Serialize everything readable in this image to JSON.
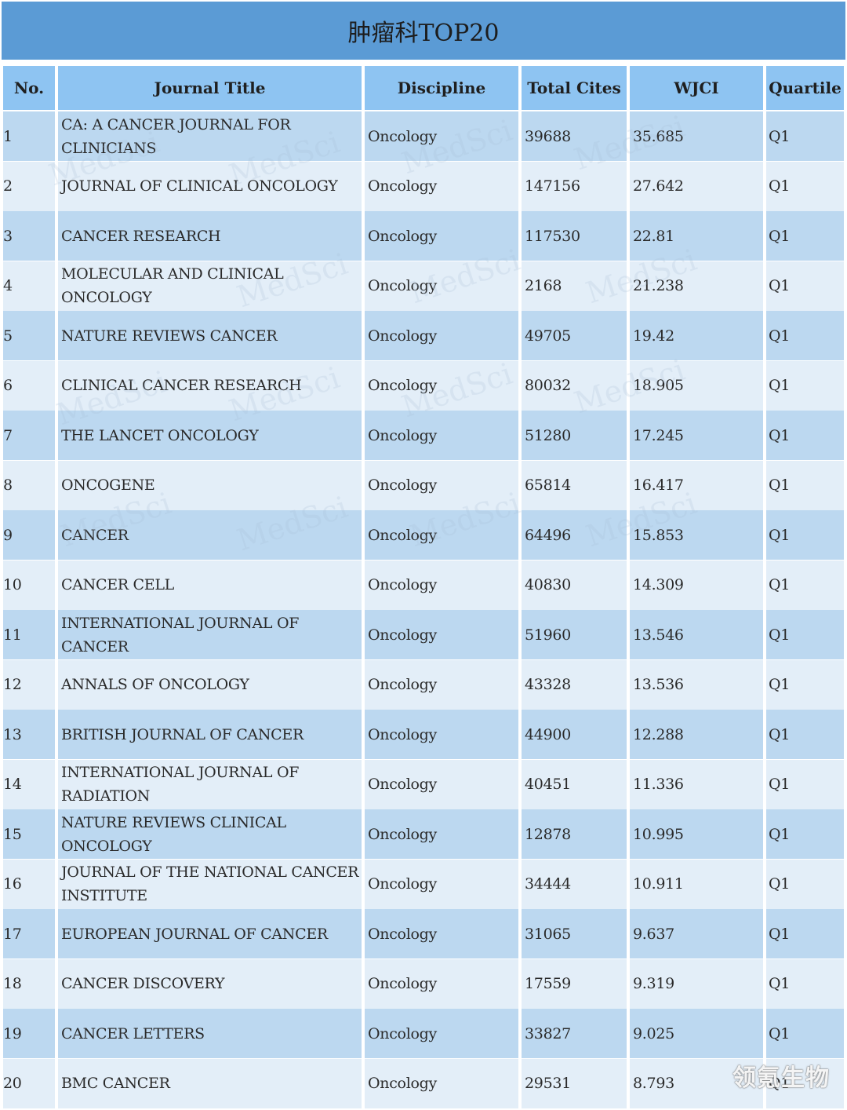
{
  "title": "肿瘤科TOP20",
  "columns": [
    "No.",
    "Journal Title",
    "Discipline",
    "Total Cites",
    "WJCI",
    "Quartile"
  ],
  "rows": [
    {
      "no": "1",
      "title": "CA: A CANCER JOURNAL FOR CLINICIANS",
      "discipline": "Oncology",
      "cites": "39688",
      "wjci": "35.685",
      "quartile": "Q1"
    },
    {
      "no": "2",
      "title": "JOURNAL OF CLINICAL ONCOLOGY",
      "discipline": "Oncology",
      "cites": "147156",
      "wjci": "27.642",
      "quartile": "Q1"
    },
    {
      "no": "3",
      "title": "CANCER RESEARCH",
      "discipline": "Oncology",
      "cites": "117530",
      "wjci": "22.81",
      "quartile": "Q1"
    },
    {
      "no": "4",
      "title": "MOLECULAR AND CLINICAL ONCOLOGY",
      "discipline": "Oncology",
      "cites": "2168",
      "wjci": "21.238",
      "quartile": "Q1"
    },
    {
      "no": "5",
      "title": "NATURE REVIEWS CANCER",
      "discipline": "Oncology",
      "cites": "49705",
      "wjci": "19.42",
      "quartile": "Q1"
    },
    {
      "no": "6",
      "title": "CLINICAL CANCER RESEARCH",
      "discipline": "Oncology",
      "cites": "80032",
      "wjci": "18.905",
      "quartile": "Q1"
    },
    {
      "no": "7",
      "title": "THE LANCET ONCOLOGY",
      "discipline": "Oncology",
      "cites": "51280",
      "wjci": "17.245",
      "quartile": "Q1"
    },
    {
      "no": "8",
      "title": "ONCOGENE",
      "discipline": "Oncology",
      "cites": "65814",
      "wjci": "16.417",
      "quartile": "Q1"
    },
    {
      "no": "9",
      "title": "CANCER",
      "discipline": "Oncology",
      "cites": "64496",
      "wjci": "15.853",
      "quartile": "Q1"
    },
    {
      "no": "10",
      "title": "CANCER CELL",
      "discipline": "Oncology",
      "cites": "40830",
      "wjci": "14.309",
      "quartile": "Q1"
    },
    {
      "no": "11",
      "title": "INTERNATIONAL JOURNAL OF CANCER",
      "discipline": "Oncology",
      "cites": "51960",
      "wjci": "13.546",
      "quartile": "Q1"
    },
    {
      "no": "12",
      "title": "ANNALS OF ONCOLOGY",
      "discipline": "Oncology",
      "cites": "43328",
      "wjci": "13.536",
      "quartile": "Q1"
    },
    {
      "no": "13",
      "title": "BRITISH JOURNAL OF CANCER",
      "discipline": "Oncology",
      "cites": "44900",
      "wjci": "12.288",
      "quartile": "Q1"
    },
    {
      "no": "14",
      "title": "INTERNATIONAL JOURNAL OF RADIATION",
      "discipline": "Oncology",
      "cites": "40451",
      "wjci": "11.336",
      "quartile": "Q1"
    },
    {
      "no": "15",
      "title": "NATURE REVIEWS CLINICAL ONCOLOGY",
      "discipline": "Oncology",
      "cites": "12878",
      "wjci": "10.995",
      "quartile": "Q1"
    },
    {
      "no": "16",
      "title": "JOURNAL OF THE NATIONAL CANCER INSTITUTE",
      "discipline": "Oncology",
      "cites": "34444",
      "wjci": "10.911",
      "quartile": "Q1"
    },
    {
      "no": "17",
      "title": "EUROPEAN JOURNAL OF CANCER",
      "discipline": "Oncology",
      "cites": "31065",
      "wjci": "9.637",
      "quartile": "Q1"
    },
    {
      "no": "18",
      "title": "CANCER DISCOVERY",
      "discipline": "Oncology",
      "cites": "17559",
      "wjci": "9.319",
      "quartile": "Q1"
    },
    {
      "no": "19",
      "title": "CANCER LETTERS",
      "discipline": "Oncology",
      "cites": "33827",
      "wjci": "9.025",
      "quartile": "Q1"
    },
    {
      "no": "20",
      "title": "BMC CANCER",
      "discipline": "Oncology",
      "cites": "29531",
      "wjci": "8.793",
      "quartile": "Q1"
    }
  ],
  "watermark": "MedSci",
  "corner_logo": "领氪生物",
  "colors": {
    "title_bar": "#5b9bd5",
    "header": "#8ec4f2",
    "row_dark": "#bcd8f0",
    "row_light": "#e3eef8"
  }
}
